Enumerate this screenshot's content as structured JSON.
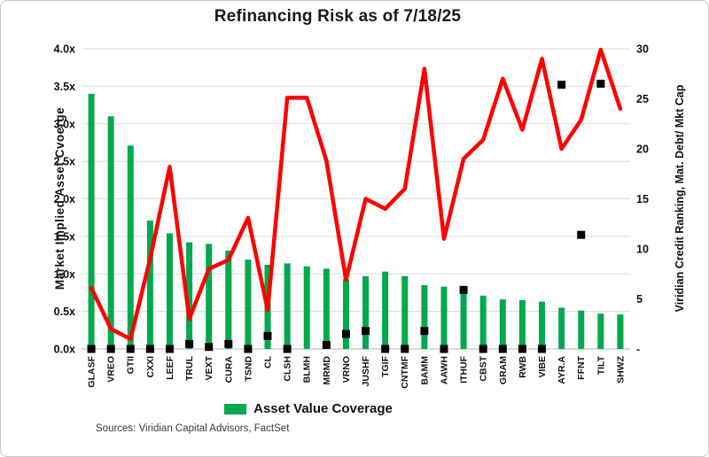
{
  "sources": "Sources: Viridian Capital Advisors, FactSet",
  "colors": {
    "grid": "#dbdbdb",
    "axis_line": "#b5b5b5",
    "background": "#ffffff"
  },
  "chart_data": {
    "type": "bar",
    "title": "Refinancing Risk as of 7/18/25",
    "grid": "horizontal",
    "legend_position": "bottom",
    "categories": [
      "GLASF",
      "VREO",
      "GTII",
      "CXXI",
      "LEEF",
      "TRUL",
      "VEXT",
      "CURA",
      "TSND",
      "CL",
      "CLSH",
      "BLMH",
      "MRMD",
      "VRNO",
      "JUSHF",
      "TGIF",
      "CNTMF",
      "BAMM",
      "AAWH",
      "ITHUF",
      "CBST",
      "GRAM",
      "RWB",
      "VIBE",
      "AYR.A",
      "FFNT",
      "TILT",
      "SHWZ"
    ],
    "left_axis": {
      "label": "Market Implied Asset Cvoerge",
      "range": [
        0,
        4
      ],
      "tick_step": 0.5,
      "ticks": [
        "4.0x",
        "3.5x",
        "3.0x",
        "2.5x",
        "2.0x",
        "1.5x",
        "1.0x",
        "0.5x",
        "0.0x"
      ]
    },
    "right_axis": {
      "label": "Viridian Credit Ranking, Mat. Debt/ Mkt Cap",
      "range": [
        0,
        30
      ],
      "tick_step": 5,
      "ticks": [
        "30",
        "25",
        "20",
        "15",
        "10",
        "5",
        "-"
      ]
    },
    "series": [
      {
        "name": "Asset Value Coverage",
        "type": "bar",
        "axis": "left",
        "color": "#00a84e",
        "values": [
          3.4,
          3.1,
          2.71,
          1.71,
          1.54,
          1.42,
          1.4,
          1.31,
          1.19,
          1.12,
          1.14,
          1.1,
          1.07,
          0.93,
          0.97,
          1.03,
          0.97,
          0.85,
          0.83,
          0.8,
          0.71,
          0.66,
          0.65,
          0.63,
          0.55,
          0.51,
          0.47,
          0.46
        ]
      },
      {
        "name": "Viridian Credit Ranking",
        "type": "line",
        "axis": "right",
        "color": "#fe0000",
        "values": [
          6.1,
          2.0,
          1.0,
          9.0,
          18.2,
          3.0,
          8.0,
          8.9,
          13.1,
          3.9,
          25.1,
          25.1,
          18.8,
          6.9,
          15.0,
          14.0,
          16.0,
          28.0,
          11.0,
          19.0,
          20.9,
          27.0,
          21.9,
          29.0,
          20.0,
          22.9,
          29.9,
          24.0
        ]
      },
      {
        "name": "Mat. Debt/ Mkt Cap",
        "type": "scatter",
        "axis": "right",
        "color": "#000000",
        "values": [
          0,
          0,
          0,
          0,
          0,
          0.5,
          0.2,
          0.5,
          0,
          1.3,
          0,
          null,
          0.4,
          1.5,
          1.8,
          0,
          0,
          1.8,
          0,
          5.9,
          0,
          0,
          0,
          0,
          26.4,
          11.4,
          26.5,
          null
        ]
      }
    ]
  }
}
